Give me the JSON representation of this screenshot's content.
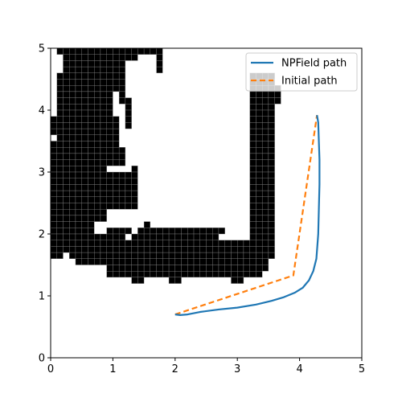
{
  "chart_data": {
    "type": "line",
    "title": "",
    "xlabel": "",
    "ylabel": "",
    "xlim": [
      0,
      5
    ],
    "ylim": [
      0,
      5
    ],
    "xticks": [
      "0",
      "1",
      "2",
      "3",
      "4",
      "5"
    ],
    "yticks": [
      "0",
      "1",
      "2",
      "3",
      "4",
      "5"
    ],
    "grid": false,
    "legend_position": "top-right",
    "obstacle_cell_size": 0.1,
    "obstacle_color": "#000000",
    "obstacle_grid_color": "#888888",
    "obstacle_rows": [
      {
        "y": 4.9,
        "cells": [
          [
            0.1,
            1.8
          ]
        ]
      },
      {
        "y": 4.8,
        "cells": [
          [
            0.2,
            1.4
          ],
          [
            1.7,
            1.8
          ]
        ]
      },
      {
        "y": 4.7,
        "cells": [
          [
            0.2,
            1.2
          ],
          [
            1.7,
            1.8
          ]
        ]
      },
      {
        "y": 4.6,
        "cells": [
          [
            0.2,
            1.2
          ],
          [
            1.7,
            1.8
          ]
        ]
      },
      {
        "y": 4.5,
        "cells": [
          [
            0.1,
            1.2
          ],
          [
            3.2,
            3.6
          ]
        ]
      },
      {
        "y": 4.4,
        "cells": [
          [
            0.1,
            1.2
          ],
          [
            3.2,
            3.6
          ]
        ]
      },
      {
        "y": 4.3,
        "cells": [
          [
            0.1,
            1.2
          ],
          [
            3.2,
            3.7
          ]
        ]
      },
      {
        "y": 4.2,
        "cells": [
          [
            0.1,
            1.0
          ],
          [
            1.1,
            1.2
          ],
          [
            3.2,
            3.7
          ]
        ]
      },
      {
        "y": 4.1,
        "cells": [
          [
            0.1,
            1.0
          ],
          [
            1.1,
            1.3
          ],
          [
            3.2,
            3.7
          ]
        ]
      },
      {
        "y": 4.0,
        "cells": [
          [
            0.1,
            1.0
          ],
          [
            1.2,
            1.3
          ],
          [
            3.2,
            3.6
          ]
        ]
      },
      {
        "y": 3.9,
        "cells": [
          [
            0.1,
            1.0
          ],
          [
            1.2,
            1.3
          ],
          [
            3.2,
            3.6
          ]
        ]
      },
      {
        "y": 3.8,
        "cells": [
          [
            0.0,
            1.1
          ],
          [
            1.2,
            1.3
          ],
          [
            3.2,
            3.6
          ]
        ]
      },
      {
        "y": 3.7,
        "cells": [
          [
            0.0,
            1.1
          ],
          [
            1.2,
            1.3
          ],
          [
            3.2,
            3.6
          ]
        ]
      },
      {
        "y": 3.6,
        "cells": [
          [
            0.0,
            1.1
          ],
          [
            3.2,
            3.6
          ]
        ]
      },
      {
        "y": 3.5,
        "cells": [
          [
            0.1,
            1.1
          ],
          [
            3.2,
            3.6
          ]
        ]
      },
      {
        "y": 3.4,
        "cells": [
          [
            0.0,
            1.1
          ],
          [
            3.2,
            3.6
          ]
        ]
      },
      {
        "y": 3.3,
        "cells": [
          [
            0.0,
            1.2
          ],
          [
            3.2,
            3.6
          ]
        ]
      },
      {
        "y": 3.2,
        "cells": [
          [
            0.0,
            1.2
          ],
          [
            3.2,
            3.6
          ]
        ]
      },
      {
        "y": 3.1,
        "cells": [
          [
            0.0,
            1.2
          ],
          [
            3.2,
            3.6
          ]
        ]
      },
      {
        "y": 3.0,
        "cells": [
          [
            0.0,
            0.9
          ],
          [
            1.3,
            1.4
          ],
          [
            3.2,
            3.6
          ]
        ]
      },
      {
        "y": 2.9,
        "cells": [
          [
            0.0,
            1.4
          ],
          [
            3.2,
            3.6
          ]
        ]
      },
      {
        "y": 2.8,
        "cells": [
          [
            0.0,
            1.4
          ],
          [
            3.2,
            3.6
          ]
        ]
      },
      {
        "y": 2.7,
        "cells": [
          [
            0.0,
            1.4
          ],
          [
            3.2,
            3.6
          ]
        ]
      },
      {
        "y": 2.6,
        "cells": [
          [
            0.0,
            1.4
          ],
          [
            3.2,
            3.6
          ]
        ]
      },
      {
        "y": 2.5,
        "cells": [
          [
            0.0,
            1.4
          ],
          [
            3.2,
            3.6
          ]
        ]
      },
      {
        "y": 2.4,
        "cells": [
          [
            0.0,
            1.4
          ],
          [
            3.2,
            3.6
          ]
        ]
      },
      {
        "y": 2.3,
        "cells": [
          [
            0.0,
            0.9
          ],
          [
            3.2,
            3.6
          ]
        ]
      },
      {
        "y": 2.2,
        "cells": [
          [
            0.0,
            0.9
          ],
          [
            3.2,
            3.6
          ]
        ]
      },
      {
        "y": 2.1,
        "cells": [
          [
            0.0,
            0.7
          ],
          [
            1.5,
            1.6
          ],
          [
            3.2,
            3.6
          ]
        ]
      },
      {
        "y": 2.0,
        "cells": [
          [
            0.0,
            0.7
          ],
          [
            0.9,
            1.3
          ],
          [
            1.4,
            2.8
          ],
          [
            3.2,
            3.6
          ]
        ]
      },
      {
        "y": 1.9,
        "cells": [
          [
            0.0,
            1.2
          ],
          [
            1.3,
            2.7
          ],
          [
            3.2,
            3.6
          ]
        ]
      },
      {
        "y": 1.8,
        "cells": [
          [
            0.0,
            3.6
          ]
        ]
      },
      {
        "y": 1.7,
        "cells": [
          [
            0.0,
            3.6
          ]
        ]
      },
      {
        "y": 1.6,
        "cells": [
          [
            0.0,
            0.2
          ],
          [
            0.3,
            3.6
          ]
        ]
      },
      {
        "y": 1.5,
        "cells": [
          [
            0.4,
            3.5
          ]
        ]
      },
      {
        "y": 1.4,
        "cells": [
          [
            0.9,
            3.5
          ]
        ]
      },
      {
        "y": 1.3,
        "cells": [
          [
            0.9,
            3.4
          ]
        ]
      },
      {
        "y": 1.2,
        "cells": [
          [
            1.3,
            1.5
          ],
          [
            1.9,
            2.1
          ],
          [
            2.9,
            3.1
          ]
        ]
      }
    ],
    "series": [
      {
        "name": "NPField path",
        "color": "#1f77b4",
        "style": "solid",
        "x": [
          2.0,
          2.08,
          2.2,
          2.4,
          2.7,
          3.0,
          3.3,
          3.55,
          3.75,
          3.92,
          4.05,
          4.15,
          4.22,
          4.27,
          4.3,
          4.31,
          4.32,
          4.32,
          4.31,
          4.3,
          4.28
        ],
        "y": [
          0.7,
          0.69,
          0.7,
          0.74,
          0.78,
          0.81,
          0.86,
          0.92,
          0.98,
          1.05,
          1.13,
          1.25,
          1.4,
          1.6,
          2.0,
          2.4,
          2.8,
          3.2,
          3.5,
          3.8,
          3.92
        ]
      },
      {
        "name": "Initial path",
        "color": "#ff7f0e",
        "style": "dashed",
        "x": [
          2.0,
          3.9,
          4.28
        ],
        "y": [
          0.7,
          1.33,
          3.92
        ]
      }
    ]
  }
}
